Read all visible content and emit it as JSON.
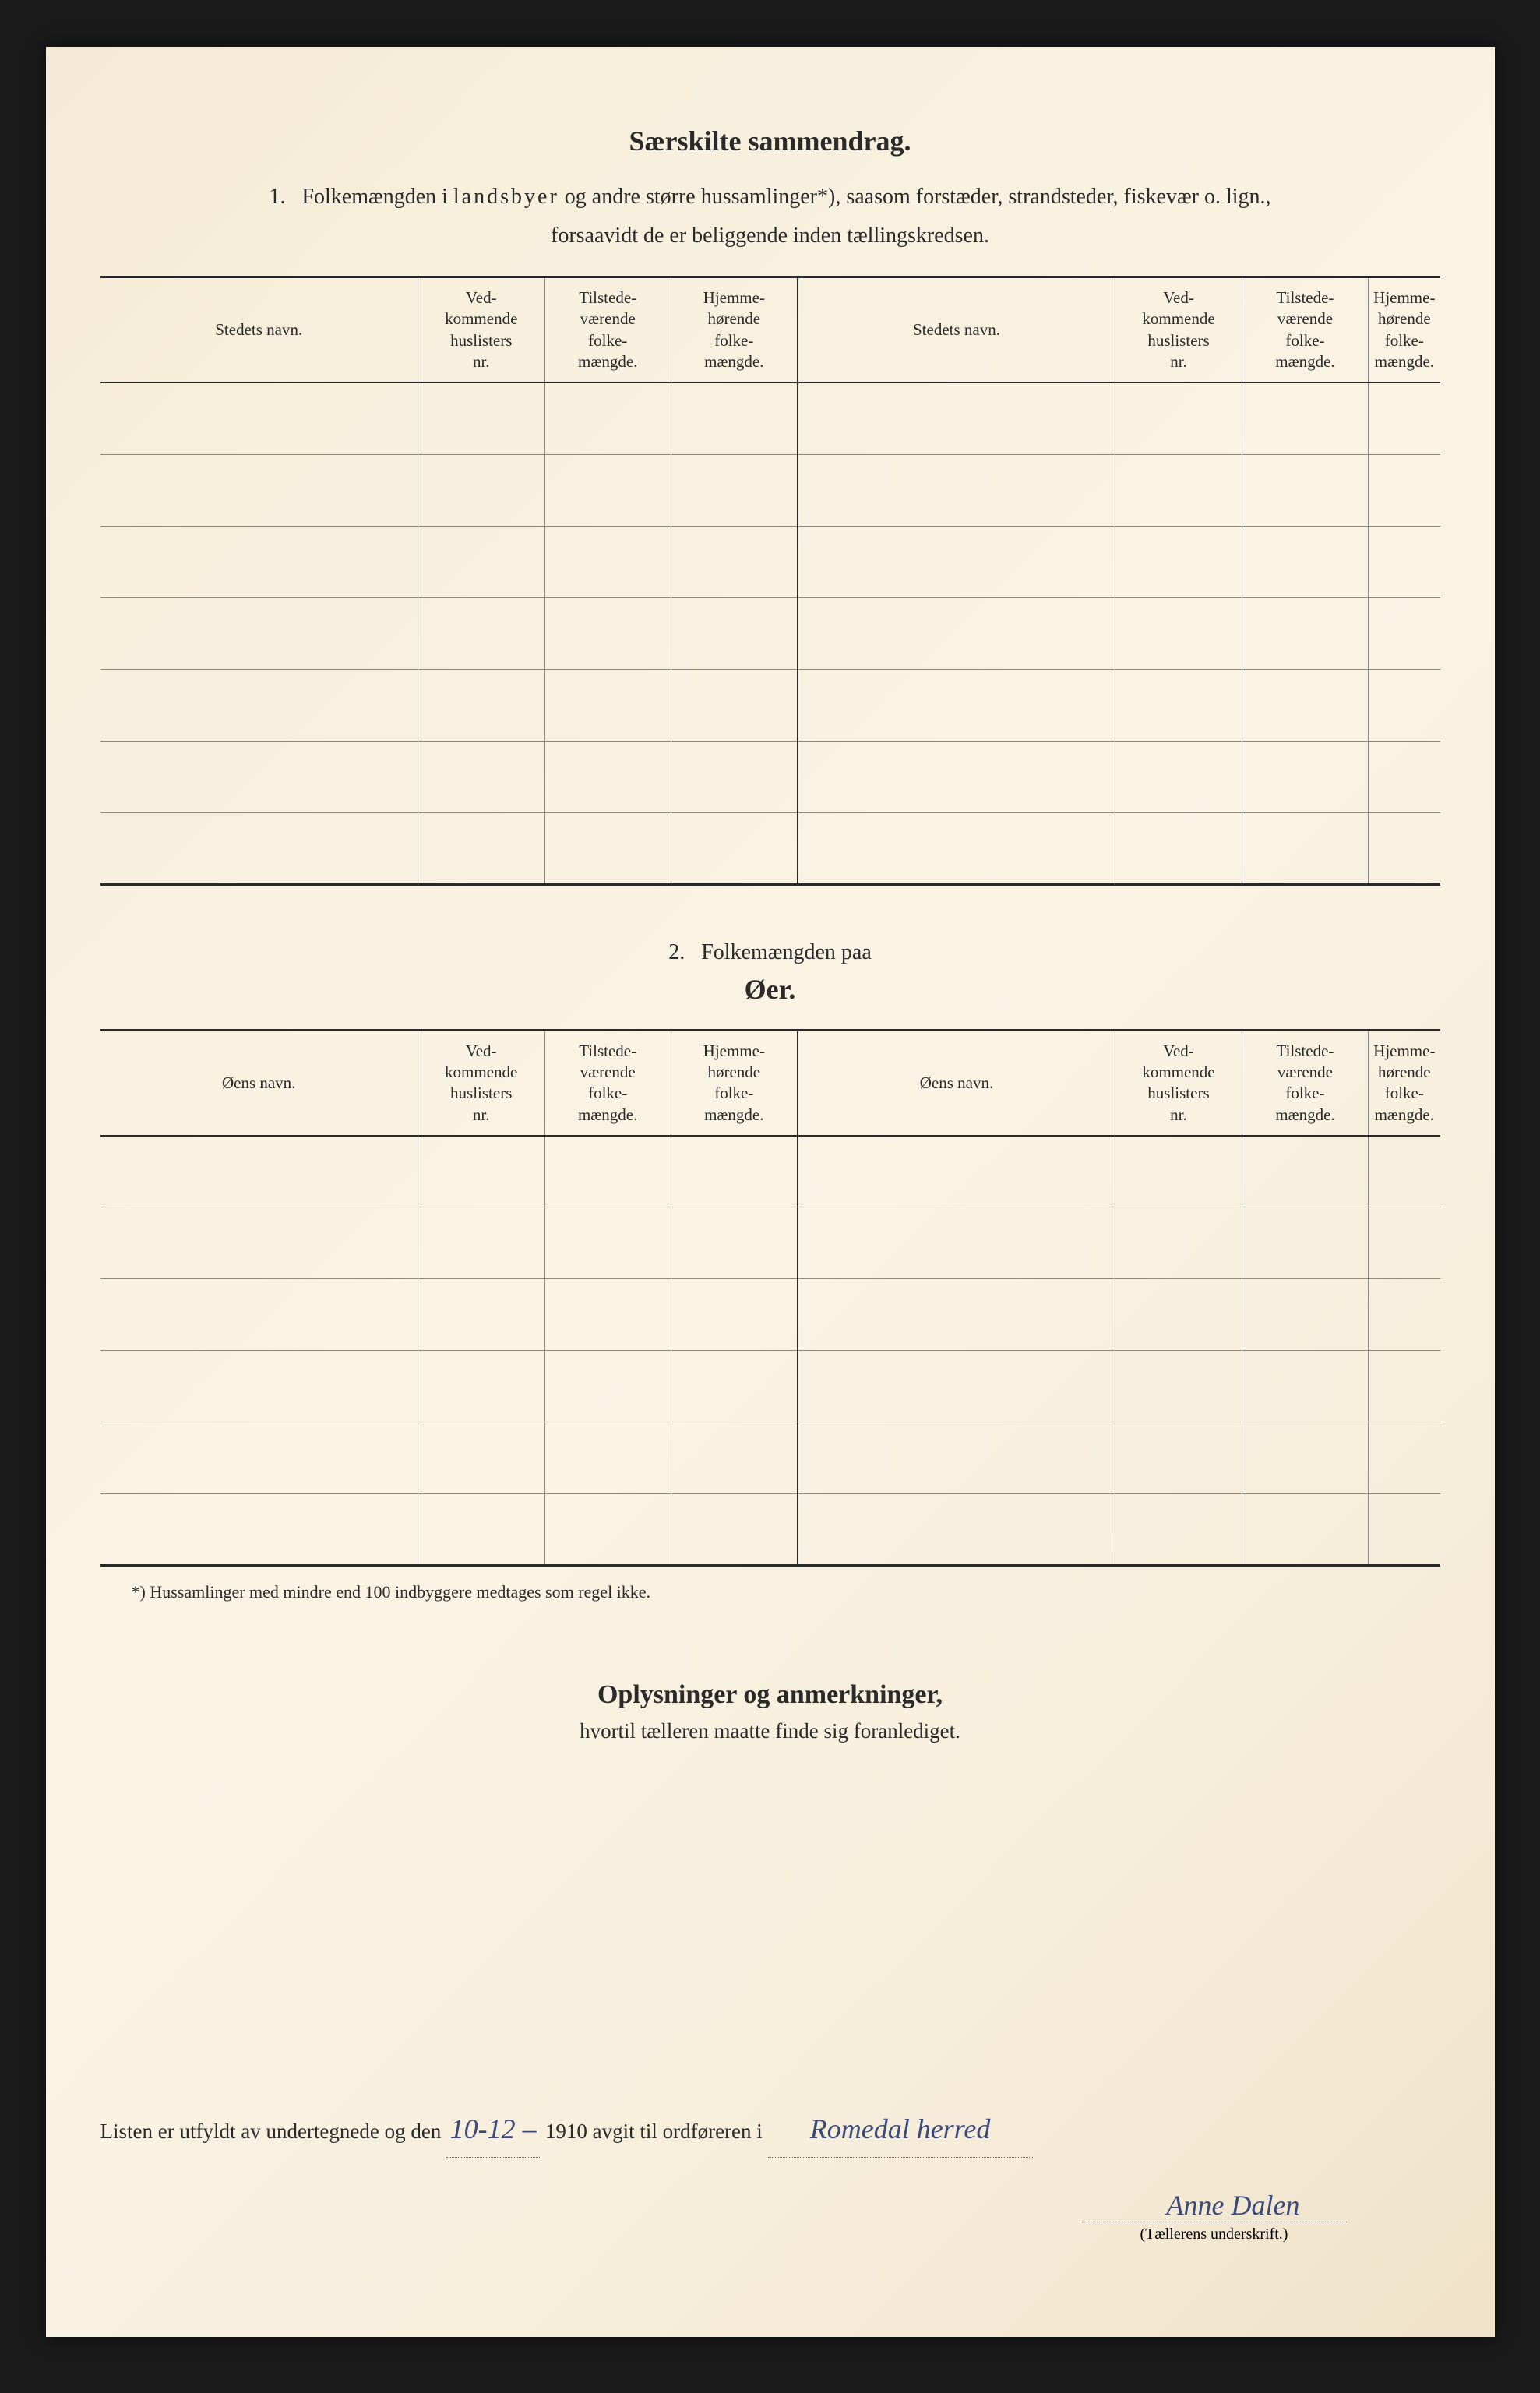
{
  "title": "Særskilte sammendrag.",
  "section1": {
    "number": "1.",
    "text_line1_a": "Folkemængden i ",
    "text_line1_spaced": "landsbyer",
    "text_line1_b": " og andre større hussamlinger*), saasom forstæder, strandsteder, fiskevær o. lign.,",
    "text_line2": "forsaavidt de er beliggende inden tællingskredsen.",
    "columns": {
      "name": "Stedets navn.",
      "col1": "Ved-\nkommende\nhuslisters\nnr.",
      "col2": "Tilstede-\nværende\nfolke-\nmængde.",
      "col3": "Hjemme-\nhørende\nfolke-\nmængde."
    },
    "rows": 7
  },
  "section2": {
    "number": "2.",
    "title_text": "Folkemængden paa",
    "subtitle": "Øer.",
    "columns": {
      "name": "Øens navn.",
      "col1": "Ved-\nkommende\nhuslisters\nnr.",
      "col2": "Tilstede-\nværende\nfolke-\nmængde.",
      "col3": "Hjemme-\nhørende\nfolke-\nmængde."
    },
    "rows": 6
  },
  "footnote": "*) Hussamlinger med mindre end 100 indbyggere medtages som regel ikke.",
  "section3": {
    "title": "Oplysninger og anmerkninger,",
    "subtitle": "hvortil tælleren maatte finde sig foranlediget."
  },
  "bottom": {
    "prefix": "Listen er utfyldt av undertegnede og den",
    "date_handwritten": "10-12 –",
    "year": "1910",
    "mid": "avgit til ordføreren i",
    "place_handwritten": "Romedal herred",
    "signature": "Anne Dalen",
    "sig_label": "(Tællerens underskrift.)"
  }
}
